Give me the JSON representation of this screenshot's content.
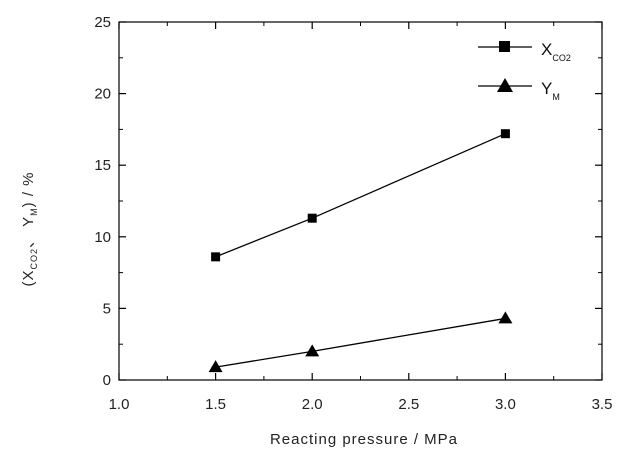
{
  "chart_data": {
    "type": "line",
    "xlabel": "Reacting pressure  / MPa",
    "ylabel": "(X",
    "ylabel_sub": "CO2",
    "ylabel_rest": "、 Y",
    "ylabel_sub2": "M",
    "ylabel_end": ") / %",
    "xlim": [
      1.0,
      3.5
    ],
    "ylim": [
      0,
      25
    ],
    "x_ticks": [
      "1.0",
      "1.5",
      "2.0",
      "2.5",
      "3.0",
      "3.5"
    ],
    "y_ticks": [
      "0",
      "5",
      "10",
      "15",
      "20",
      "25"
    ],
    "grid": false,
    "legend_position": "top-right",
    "series": [
      {
        "name": "X",
        "name_sub": "CO2",
        "marker": "square",
        "color": "#000000",
        "points": [
          [
            1.5,
            8.6
          ],
          [
            2.0,
            11.3
          ],
          [
            3.0,
            17.2
          ]
        ]
      },
      {
        "name": "Y",
        "name_sub": "M",
        "marker": "triangle",
        "color": "#000000",
        "points": [
          [
            1.5,
            0.9
          ],
          [
            2.0,
            2.0
          ],
          [
            3.0,
            4.3
          ]
        ]
      }
    ]
  }
}
